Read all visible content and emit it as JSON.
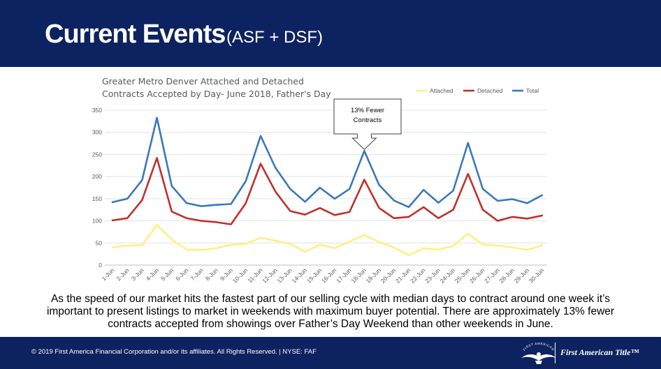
{
  "header": {
    "title": "Current Events",
    "subtitle": "(ASF + DSF)"
  },
  "chart_data": {
    "type": "line",
    "title": "Greater Metro Denver Attached and Detached Contracts Accepted by Day- June 2018, Father's Day",
    "title_lines": [
      "Greater Metro Denver Attached and Detached",
      "Contracts Accepted by Day- June 2018, Father's Day"
    ],
    "categories": [
      "1-Jun",
      "2-Jun",
      "3-Jun",
      "4-Jun",
      "5-Jun",
      "6-Jun",
      "7-Jun",
      "8-Jun",
      "9-Jun",
      "10-Jun",
      "11-Jun",
      "12-Jun",
      "13-Jun",
      "14-Jun",
      "15-Jun",
      "16-Jun",
      "17-Jun",
      "18-Jun",
      "19-Jun",
      "20-Jun",
      "21-Jun",
      "22-Jun",
      "23-Jun",
      "24-Jun",
      "25-Jun",
      "26-Jun",
      "27-Jun",
      "28-Jun",
      "29-Jun",
      "30-Jun"
    ],
    "ylim": [
      0,
      350
    ],
    "yticks": [
      0,
      50,
      100,
      150,
      200,
      250,
      300,
      350
    ],
    "legend_position": "top-right",
    "series": [
      {
        "name": "Attached",
        "color": "#ffef82",
        "values": [
          40,
          44,
          45,
          91,
          58,
          35,
          34,
          38,
          46,
          48,
          62,
          55,
          48,
          30,
          46,
          38,
          53,
          68,
          52,
          40,
          22,
          38,
          35,
          43,
          71,
          46,
          44,
          40,
          34,
          45
        ]
      },
      {
        "name": "Detached",
        "color": "#c0302c",
        "values": [
          101,
          106,
          147,
          242,
          121,
          106,
          100,
          97,
          92,
          140,
          229,
          166,
          122,
          114,
          129,
          113,
          120,
          193,
          129,
          106,
          109,
          131,
          106,
          125,
          206,
          125,
          100,
          109,
          105,
          112
        ]
      },
      {
        "name": "Total",
        "color": "#3a79b8",
        "values": [
          142,
          150,
          192,
          333,
          179,
          140,
          133,
          136,
          138,
          190,
          292,
          220,
          172,
          143,
          175,
          150,
          172,
          258,
          181,
          146,
          131,
          170,
          141,
          168,
          276,
          172,
          145,
          149,
          140,
          158
        ]
      }
    ],
    "annotation": {
      "text_lines": [
        "13% Fewer",
        "Contracts"
      ],
      "target_index": 17
    }
  },
  "body_text": "As the speed of our market hits the fastest part of our selling cycle with median days to contract around one week it’s important to present listings to market in weekends with maximum buyer potential. There are approximately 13% fewer contracts accepted from showings over Father’s Day Weekend than other weekends in June.",
  "footer": {
    "copyright": "© 2019 First America Financial Corporation and/or its affiliates. All Rights Reserved. | NYSE: FAF",
    "brand": "First American Title™",
    "logo_text": "FIRST AMERICAN"
  }
}
